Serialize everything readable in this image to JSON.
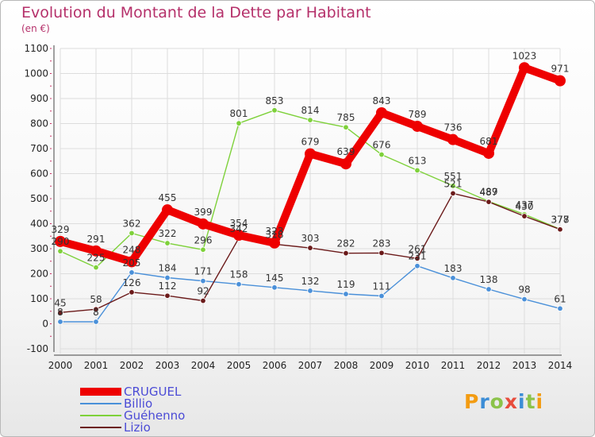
{
  "title": "Evolution du Montant de la Dette par Habitant",
  "subtitle": "(en €)",
  "brand": {
    "name": "Proxiti",
    "colors": [
      "#f39c12",
      "#3c8dd6",
      "#8bc34a",
      "#e74c3c",
      "#3c8dd6",
      "#8bc34a",
      "#f39c12"
    ]
  },
  "chart_data": {
    "type": "line",
    "title": "Evolution du Montant de la Dette par Habitant",
    "subtitle": "(en €)",
    "xlabel": "",
    "ylabel": "",
    "x": [
      "2000",
      "2001",
      "2002",
      "2003",
      "2004",
      "2005",
      "2006",
      "2007",
      "2008",
      "2009",
      "2010",
      "2011",
      "2012",
      "2013",
      "2014"
    ],
    "ylim": [
      -100,
      1100
    ],
    "yticks": [
      -100,
      0,
      100,
      200,
      300,
      400,
      500,
      600,
      700,
      800,
      900,
      1000,
      1100
    ],
    "ytick_labels": [
      "-100",
      "0",
      "100",
      "200",
      "300",
      "400",
      "500",
      "600",
      "700",
      "800",
      "900",
      "1000",
      "1100"
    ],
    "grid": true,
    "legend_position": "bottom-left",
    "series": [
      {
        "name": "CRUGUEL",
        "color": "#ee0000",
        "values": [
          329,
          291,
          248,
          455,
          399,
          354,
          323,
          679,
          639,
          843,
          789,
          736,
          681,
          1023,
          971
        ]
      },
      {
        "name": "Billio",
        "color": "#4a90d9",
        "values": [
          8,
          8,
          205,
          184,
          171,
          158,
          145,
          132,
          119,
          111,
          231,
          183,
          138,
          98,
          61
        ]
      },
      {
        "name": "Guéhenno",
        "color": "#7ed13a",
        "values": [
          290,
          225,
          362,
          322,
          296,
          801,
          853,
          814,
          785,
          676,
          613,
          551,
          489,
          437,
          378
        ]
      },
      {
        "name": "Lizio",
        "color": "#6b1a1a",
        "values": [
          45,
          58,
          126,
          112,
          92,
          342,
          318,
          303,
          282,
          283,
          261,
          521,
          487,
          430,
          377
        ]
      }
    ],
    "data_labels": [
      [
        "329",
        "291",
        "248",
        "455",
        "399",
        "354",
        "323",
        "679",
        "639",
        "843",
        "789",
        "736",
        "681",
        "1023",
        "971"
      ],
      [
        "8",
        "8",
        "205",
        "184",
        "171",
        "158",
        "145",
        "132",
        "119",
        "111",
        "231",
        "183",
        "138",
        "98",
        "61"
      ],
      [
        "290",
        "225",
        "362",
        "322",
        "296",
        "801",
        "853",
        "814",
        "785",
        "676",
        "613",
        "551",
        "489",
        "437",
        "378"
      ],
      [
        "45",
        "58",
        "126",
        "112",
        "92",
        "342",
        "318",
        "303",
        "282",
        "283",
        "261",
        "521",
        "487",
        "430",
        "377"
      ]
    ]
  }
}
